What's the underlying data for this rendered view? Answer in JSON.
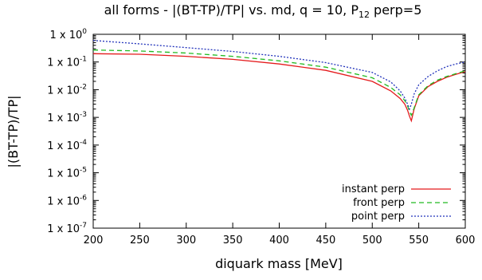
{
  "chart_data": {
    "type": "line",
    "title": {
      "main": "all forms - |(BT-TP)/TP| vs. md, q = 10, P",
      "sub": "12",
      "tail": " perp=5"
    },
    "xlabel": "diquark mass [MeV]",
    "ylabel": "|(BT-TP)/TP|",
    "xlim": [
      200,
      600
    ],
    "ylim": [
      1e-07,
      1
    ],
    "yscale": "log",
    "grid": false,
    "legend_position": "bottom-right",
    "x_ticks": [
      "200",
      "250",
      "300",
      "350",
      "400",
      "450",
      "500",
      "550",
      "600"
    ],
    "y_ticks": [
      {
        "base": "1 x 10",
        "exp": "0"
      },
      {
        "base": "1 x 10",
        "exp": "-1"
      },
      {
        "base": "1 x 10",
        "exp": "-2"
      },
      {
        "base": "1 x 10",
        "exp": "-3"
      },
      {
        "base": "1 x 10",
        "exp": "-4"
      },
      {
        "base": "1 x 10",
        "exp": "-5"
      },
      {
        "base": "1 x 10",
        "exp": "-6"
      },
      {
        "base": "1 x 10",
        "exp": "-7"
      }
    ],
    "series": [
      {
        "name": "instant perp",
        "color": "#e41a1c",
        "dash": "solid",
        "x": [
          200,
          250,
          300,
          350,
          400,
          450,
          500,
          520,
          530,
          535,
          538,
          540,
          542,
          545,
          550,
          560,
          570,
          580,
          590,
          600
        ],
        "y": [
          0.2,
          0.19,
          0.16,
          0.125,
          0.085,
          0.05,
          0.02,
          0.009,
          0.0048,
          0.003,
          0.0018,
          0.0011,
          0.00075,
          0.002,
          0.006,
          0.013,
          0.02,
          0.028,
          0.036,
          0.045
        ]
      },
      {
        "name": "front perp",
        "color": "#22bb22",
        "dash": "dashed",
        "x": [
          200,
          250,
          300,
          350,
          400,
          450,
          500,
          520,
          530,
          535,
          538,
          540,
          542,
          545,
          550,
          560,
          570,
          580,
          590,
          600
        ],
        "y": [
          0.27,
          0.25,
          0.21,
          0.16,
          0.11,
          0.065,
          0.027,
          0.012,
          0.0065,
          0.004,
          0.0026,
          0.0016,
          0.0012,
          0.0022,
          0.0065,
          0.014,
          0.022,
          0.03,
          0.038,
          0.048
        ]
      },
      {
        "name": "point perp",
        "color": "#2233bb",
        "dash": "dotted",
        "x": [
          200,
          250,
          300,
          350,
          400,
          450,
          500,
          520,
          530,
          535,
          538,
          540,
          542,
          545,
          550,
          560,
          570,
          580,
          590,
          600
        ],
        "y": [
          0.6,
          0.45,
          0.33,
          0.24,
          0.16,
          0.095,
          0.042,
          0.019,
          0.009,
          0.005,
          0.003,
          0.002,
          0.003,
          0.007,
          0.015,
          0.03,
          0.048,
          0.068,
          0.085,
          0.1
        ]
      }
    ]
  }
}
